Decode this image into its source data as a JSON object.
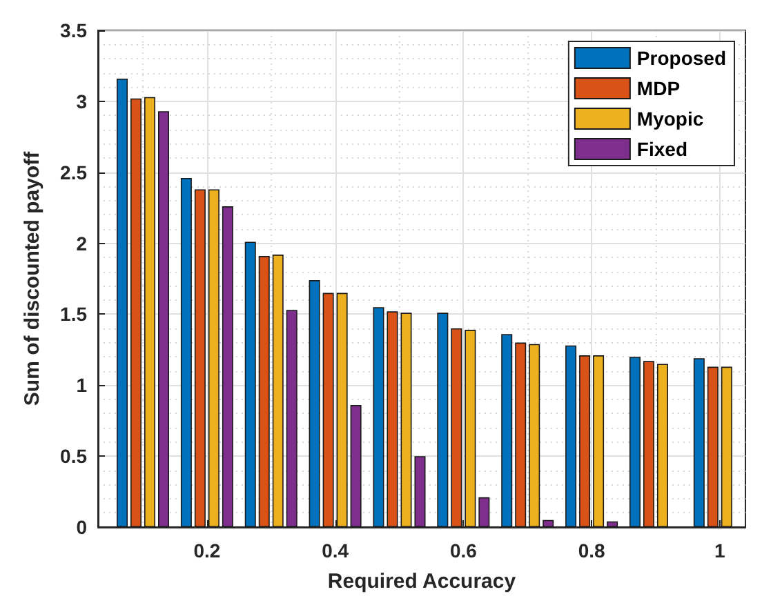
{
  "chart_data": {
    "type": "bar",
    "xlabel": "Required Accuracy",
    "ylabel": "Sum of discounted payoff",
    "x": [
      0.1,
      0.2,
      0.3,
      0.4,
      0.5,
      0.6,
      0.7,
      0.8,
      0.9,
      1.0
    ],
    "xlim": [
      0.03,
      1.04
    ],
    "xticks": [
      0.2,
      0.4,
      0.6,
      0.8,
      1
    ],
    "ylim": [
      0,
      3.5
    ],
    "yticks": [
      0,
      0.5,
      1,
      1.5,
      2,
      2.5,
      3,
      3.5
    ],
    "grid": true,
    "legend": "top right",
    "series": [
      {
        "name": "Proposed",
        "color": "#0072bd",
        "values": [
          3.16,
          2.46,
          2.01,
          1.74,
          1.55,
          1.51,
          1.36,
          1.28,
          1.2,
          1.19
        ]
      },
      {
        "name": "MDP",
        "color": "#d95319",
        "values": [
          3.02,
          2.38,
          1.91,
          1.65,
          1.52,
          1.4,
          1.3,
          1.21,
          1.17,
          1.13
        ]
      },
      {
        "name": "Myopic",
        "color": "#edb120",
        "values": [
          3.03,
          2.38,
          1.92,
          1.65,
          1.51,
          1.39,
          1.29,
          1.21,
          1.15,
          1.13
        ]
      },
      {
        "name": "Fixed",
        "color": "#7e2f8e",
        "values": [
          2.93,
          2.26,
          1.53,
          0.86,
          0.5,
          0.21,
          0.05,
          0.04,
          0,
          0
        ]
      }
    ]
  }
}
